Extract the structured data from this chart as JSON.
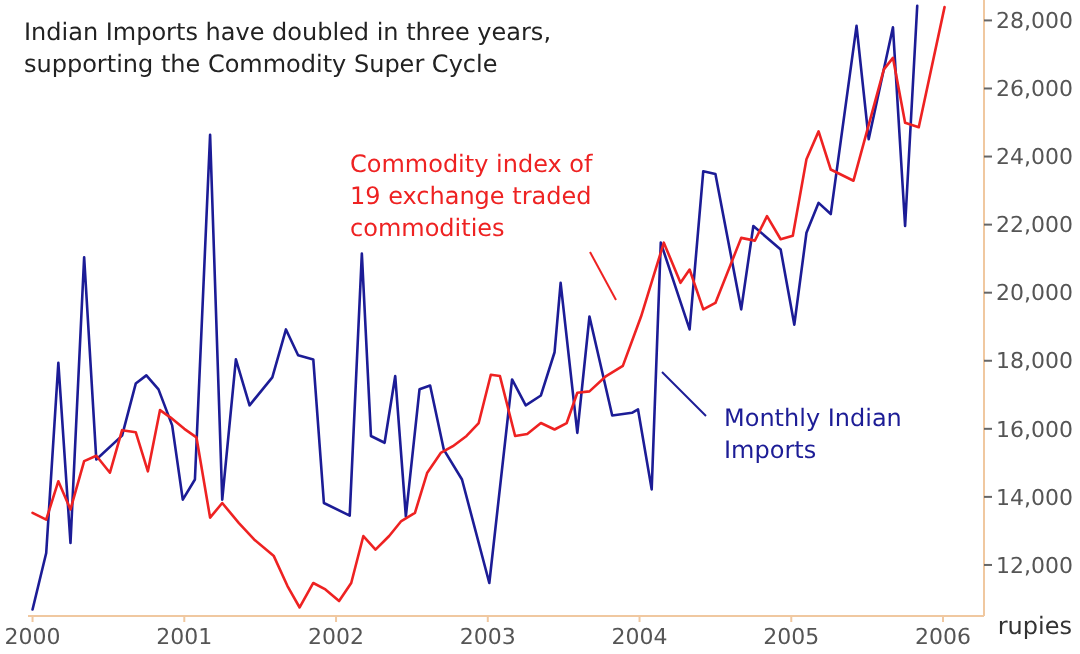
{
  "chart_data": {
    "type": "line",
    "title": "Indian Imports have doubled in three years,\nsupporting the Commodity Super Cycle",
    "ylabel": "rupies",
    "xlim": [
      1999.97,
      2006.27
    ],
    "ylim": [
      10500,
      28600
    ],
    "xticks": [
      2000,
      2001,
      2002,
      2003,
      2004,
      2005,
      2006
    ],
    "yticks": [
      {
        "value": 12000,
        "label": "12,000"
      },
      {
        "value": 14000,
        "label": "14,000"
      },
      {
        "value": 16000,
        "label": "16,000"
      },
      {
        "value": 18000,
        "label": "18,000"
      },
      {
        "value": 20000,
        "label": "20,000"
      },
      {
        "value": 22000,
        "label": "22,000"
      },
      {
        "value": 24000,
        "label": "24,000"
      },
      {
        "value": 26000,
        "label": "26,000"
      },
      {
        "value": 28000,
        "label": "28,000"
      }
    ],
    "grid": false,
    "marker": "none",
    "line_style": "solid",
    "series": [
      {
        "name": "Monthly Indian Imports",
        "color": "#1c1c96",
        "x": [
          2000.0,
          2000.09,
          2000.17,
          2000.25,
          2000.34,
          2000.42,
          2000.59,
          2000.68,
          2000.75,
          2000.83,
          2000.92,
          2000.99,
          2001.07,
          2001.17,
          2001.25,
          2001.34,
          2001.43,
          2001.58,
          2001.67,
          2001.75,
          2001.85,
          2001.92,
          2002.09,
          2002.17,
          2002.23,
          2002.32,
          2002.39,
          2002.46,
          2002.55,
          2002.62,
          2002.71,
          2002.83,
          2003.01,
          2003.16,
          2003.25,
          2003.35,
          2003.44,
          2003.48,
          2003.59,
          2003.67,
          2003.82,
          2003.95,
          2003.99,
          2004.08,
          2004.14,
          2004.33,
          2004.42,
          2004.5,
          2004.67,
          2004.75,
          2004.93,
          2005.02,
          2005.1,
          2005.18,
          2005.26,
          2005.43,
          2005.51,
          2005.67,
          2005.75,
          2005.83
        ],
        "values": [
          10690,
          12350,
          17940,
          12650,
          21040,
          15100,
          15800,
          17330,
          17570,
          17160,
          16100,
          13920,
          14510,
          24640,
          13920,
          18040,
          16690,
          17510,
          18920,
          18160,
          18040,
          13820,
          13450,
          21150,
          15790,
          15590,
          17550,
          13430,
          17160,
          17270,
          15390,
          14510,
          11470,
          17450,
          16690,
          16980,
          18250,
          20290,
          15880,
          19300,
          16390,
          16470,
          16570,
          14220,
          21470,
          18920,
          23570,
          23490,
          19510,
          21960,
          21270,
          19060,
          21760,
          22640,
          22310,
          27840,
          24510,
          27800,
          21960,
          28430
        ]
      },
      {
        "name": "Commodity index of 19 exchange traded commodities",
        "color": "#ee2222",
        "x": [
          2000.0,
          2000.09,
          2000.17,
          2000.25,
          2000.34,
          2000.42,
          2000.51,
          2000.59,
          2000.68,
          2000.76,
          2000.84,
          2000.91,
          2001.0,
          2001.08,
          2001.17,
          2001.25,
          2001.36,
          2001.46,
          2001.59,
          2001.68,
          2001.76,
          2001.85,
          2001.93,
          2002.02,
          2002.1,
          2002.18,
          2002.26,
          2002.35,
          2002.43,
          2002.52,
          2002.6,
          2002.69,
          2002.77,
          2002.86,
          2002.94,
          2003.02,
          2003.08,
          2003.18,
          2003.26,
          2003.35,
          2003.44,
          2003.52,
          2003.59,
          2003.67,
          2003.78,
          2003.89,
          2004.01,
          2004.16,
          2004.27,
          2004.33,
          2004.42,
          2004.5,
          2004.67,
          2004.76,
          2004.84,
          2004.93,
          2005.01,
          2005.1,
          2005.18,
          2005.26,
          2005.41,
          2005.61,
          2005.67,
          2005.75,
          2005.84,
          2006.01
        ],
        "values": [
          13530,
          13330,
          14460,
          13630,
          15050,
          15210,
          14710,
          15960,
          15900,
          14750,
          16550,
          16330,
          16000,
          15750,
          13390,
          13820,
          13230,
          12750,
          12260,
          11380,
          10750,
          11470,
          11280,
          10940,
          11470,
          12850,
          12450,
          12850,
          13290,
          13530,
          14700,
          15290,
          15490,
          15790,
          16170,
          17590,
          17550,
          15790,
          15850,
          16170,
          15980,
          16170,
          17060,
          17100,
          17550,
          17850,
          19300,
          21470,
          20290,
          20680,
          19510,
          19700,
          21610,
          21530,
          22250,
          21570,
          21670,
          23920,
          24740,
          23620,
          23290,
          26560,
          26900,
          24990,
          24860,
          28390
        ]
      }
    ]
  }
}
